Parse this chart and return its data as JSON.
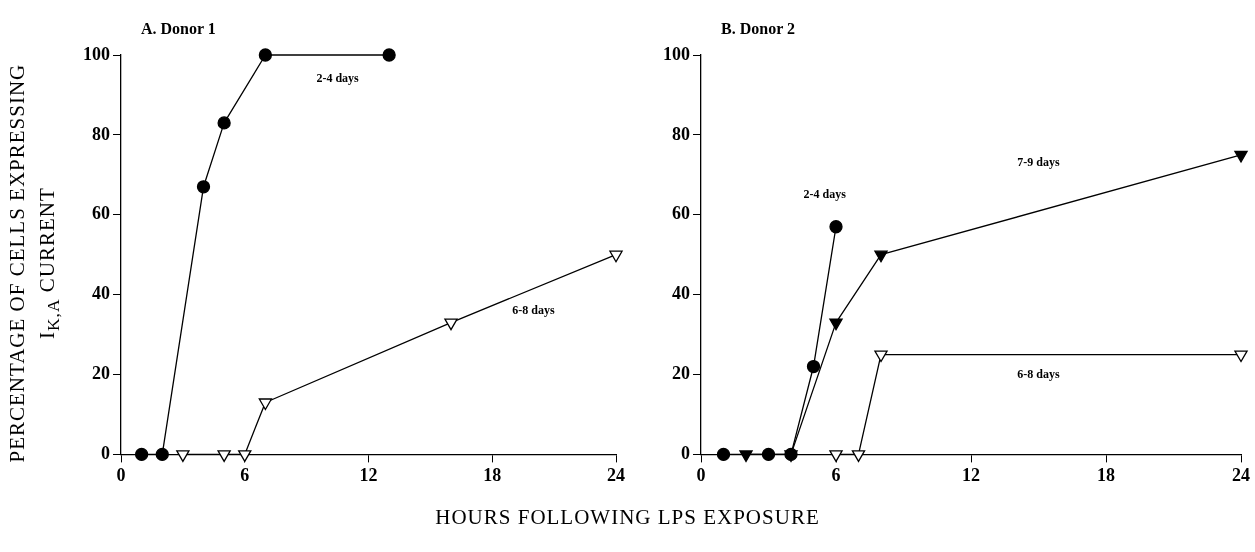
{
  "chart_data": [
    {
      "type": "line",
      "title": "A. Donor 1",
      "xlabel": "HOURS FOLLOWING LPS EXPOSURE",
      "ylabel": "PERCENTAGE OF CELLS EXPRESSING\nI$_{K,A}$ CURRENT",
      "xlim": [
        0,
        24
      ],
      "xticks": [
        0,
        6,
        12,
        18,
        24
      ],
      "ylim": [
        0,
        100
      ],
      "yticks": [
        0,
        20,
        40,
        60,
        80,
        100
      ],
      "grid": false,
      "line_style": "solid",
      "series": [
        {
          "name": "2-4 days",
          "color": "#000000",
          "marker": "circle",
          "x": [
            1,
            2,
            4,
            5,
            7,
            13
          ],
          "values": [
            0,
            0,
            67,
            83,
            100,
            100
          ]
        },
        {
          "name": "6-8 days",
          "color": "#000000",
          "colors": [
            "#ffffff",
            "#ffffff",
            "#ffffff",
            "#ffffff",
            "#ffffff",
            "#ffffff"
          ],
          "marker": "triangle",
          "x": [
            3,
            5,
            6,
            7,
            16,
            24
          ],
          "values": [
            0,
            0,
            0,
            13,
            33,
            50
          ]
        }
      ]
    },
    {
      "type": "line",
      "title": "B. Donor 2",
      "xlim": [
        0,
        24
      ],
      "xticks": [
        0,
        6,
        12,
        18,
        24
      ],
      "ylim": [
        0,
        100
      ],
      "yticks": [
        0,
        20,
        40,
        60,
        80,
        100
      ],
      "grid": false,
      "line_style": "solid",
      "series": [
        {
          "name": "2-4 days",
          "color": "#000000",
          "marker": "circle",
          "x": [
            1,
            3,
            4,
            5,
            6
          ],
          "values": [
            0,
            0,
            0,
            22,
            57
          ]
        },
        {
          "name": "7-9 days",
          "color": "#000000",
          "marker": "triangle",
          "x": [
            2,
            4,
            6,
            8,
            24
          ],
          "values": [
            0,
            0,
            33,
            50,
            75
          ]
        },
        {
          "name": "6-8 days",
          "color": "#000000",
          "colors": [
            "#ffffff",
            "#ffffff",
            "#ffffff",
            "#ffffff"
          ],
          "marker": "triangle",
          "x": [
            6,
            7,
            8,
            24
          ],
          "values": [
            0,
            0,
            25,
            25
          ]
        }
      ]
    }
  ]
}
